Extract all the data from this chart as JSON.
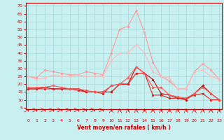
{
  "x": [
    0,
    1,
    2,
    3,
    4,
    5,
    6,
    7,
    8,
    9,
    10,
    11,
    12,
    13,
    14,
    15,
    16,
    17,
    18,
    19,
    20,
    21,
    22,
    23
  ],
  "series": [
    {
      "color": "#cc0000",
      "lw": 0.8,
      "marker": "*",
      "ms": 2.5,
      "y": [
        17,
        17,
        18,
        17,
        17,
        17,
        17,
        15,
        15,
        15,
        15,
        20,
        20,
        31,
        27,
        23,
        14,
        13,
        11,
        10,
        14,
        19,
        14,
        10
      ]
    },
    {
      "color": "#dd2222",
      "lw": 0.8,
      "marker": "p",
      "ms": 2,
      "y": [
        17,
        17,
        17,
        17,
        17,
        17,
        16,
        15,
        15,
        14,
        19,
        20,
        20,
        27,
        27,
        13,
        13,
        11,
        11,
        11,
        13,
        14,
        10,
        10
      ]
    },
    {
      "color": "#ff5555",
      "lw": 0.8,
      "marker": "*",
      "ms": 2.5,
      "y": [
        18,
        18,
        18,
        19,
        18,
        17,
        17,
        16,
        15,
        15,
        19,
        20,
        24,
        31,
        27,
        18,
        18,
        13,
        12,
        11,
        14,
        18,
        14,
        10
      ]
    },
    {
      "color": "#ff9999",
      "lw": 0.8,
      "marker": "D",
      "ms": 1.5,
      "y": [
        25,
        24,
        29,
        28,
        27,
        26,
        26,
        28,
        27,
        26,
        40,
        55,
        57,
        67,
        53,
        34,
        25,
        22,
        17,
        17,
        28,
        33,
        29,
        23
      ]
    },
    {
      "color": "#ffbbbb",
      "lw": 0.8,
      "marker": "D",
      "ms": 1.5,
      "y": [
        25,
        23,
        24,
        26,
        25,
        25,
        26,
        25,
        25,
        25,
        35,
        40,
        40,
        45,
        40,
        28,
        25,
        24,
        17,
        17,
        28,
        29,
        25,
        23
      ]
    }
  ],
  "wind_arrows": [
    0,
    0,
    0,
    0,
    0,
    0,
    0,
    0,
    0,
    0,
    1,
    1,
    1,
    1,
    1,
    1,
    1,
    1,
    1,
    1,
    1,
    1,
    1,
    1
  ],
  "xlabel": "Vent moyen/en rafales ( km/h )",
  "xticks": [
    0,
    1,
    2,
    3,
    4,
    5,
    6,
    7,
    8,
    9,
    10,
    11,
    12,
    13,
    14,
    15,
    16,
    17,
    18,
    19,
    20,
    21,
    22,
    23
  ],
  "yticks": [
    5,
    10,
    15,
    20,
    25,
    30,
    35,
    40,
    45,
    50,
    55,
    60,
    65,
    70
  ],
  "ylim": [
    4,
    72
  ],
  "xlim": [
    -0.3,
    23.3
  ],
  "bg_color": "#c8f0f0",
  "grid_color": "#a8d8d8",
  "axis_color": "#cc0000",
  "label_color": "#cc0000",
  "tick_color": "#cc0000"
}
